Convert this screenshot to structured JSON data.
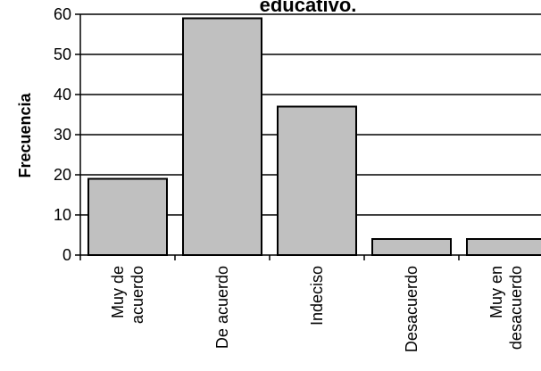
{
  "chart_data": {
    "type": "bar",
    "title": "educativo.",
    "xlabel": "",
    "ylabel": "Frecuencia",
    "ylim": [
      0,
      60
    ],
    "yticks": [
      0,
      10,
      20,
      30,
      40,
      50,
      60
    ],
    "grid": true,
    "legend": "none",
    "bar_color": "#c0c0c0",
    "categories": [
      [
        "Muy de",
        "acuerdo"
      ],
      [
        "De acuerdo"
      ],
      [
        "Indeciso"
      ],
      [
        "Desacuerdo"
      ],
      [
        "Muy en",
        "desacuerdo"
      ]
    ],
    "values": [
      19,
      59,
      37,
      4,
      4
    ]
  }
}
